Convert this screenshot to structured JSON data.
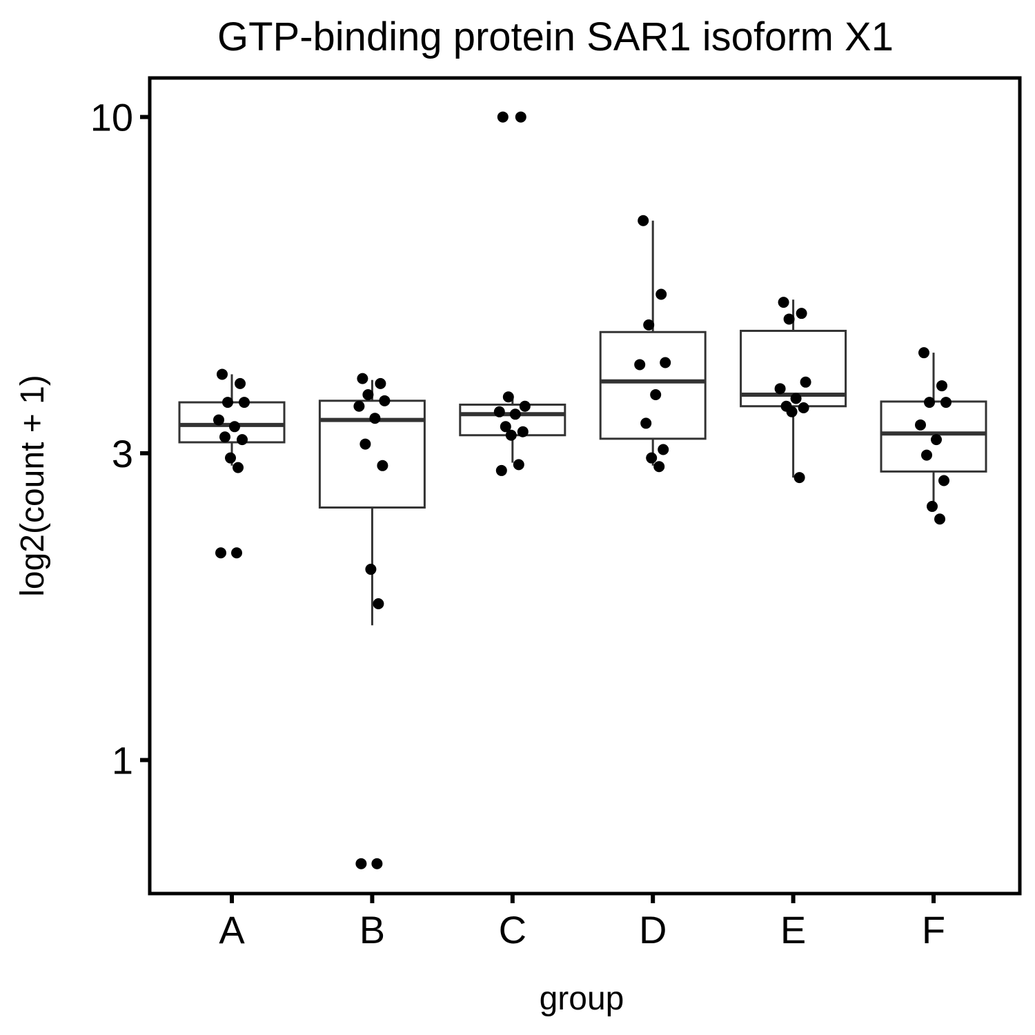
{
  "chart_data": {
    "type": "box",
    "title": "GTP-binding protein SAR1 isoform X1",
    "xlabel": "group",
    "ylabel": "log2(count + 1)",
    "y_scale": "log10",
    "ylim": [
      0.62,
      11.5
    ],
    "y_ticks": [
      1,
      3,
      10
    ],
    "y_tick_labels": [
      "1",
      "3",
      "10"
    ],
    "categories": [
      "A",
      "B",
      "C",
      "D",
      "E",
      "F"
    ],
    "grid": false,
    "legend": "none",
    "boxes": [
      {
        "group": "A",
        "whisker_low": 2.87,
        "q1": 3.12,
        "median": 3.32,
        "q3": 3.6,
        "whisker_high": 3.98
      },
      {
        "group": "B",
        "whisker_low": 1.62,
        "q1": 2.47,
        "median": 3.38,
        "q3": 3.62,
        "whisker_high": 3.9
      },
      {
        "group": "C",
        "whisker_low": 2.9,
        "q1": 3.2,
        "median": 3.45,
        "q3": 3.57,
        "whisker_high": 3.68
      },
      {
        "group": "D",
        "whisker_low": 2.87,
        "q1": 3.16,
        "median": 3.88,
        "q3": 4.63,
        "whisker_high": 6.9
      },
      {
        "group": "E",
        "whisker_low": 2.75,
        "q1": 3.55,
        "median": 3.7,
        "q3": 4.65,
        "whisker_high": 5.2
      },
      {
        "group": "F",
        "whisker_low": 2.5,
        "q1": 2.81,
        "median": 3.22,
        "q3": 3.61,
        "whisker_high": 4.3
      }
    ],
    "points": [
      {
        "group": "A",
        "values": [
          3.98,
          3.85,
          3.6,
          3.6,
          3.38,
          3.3,
          3.18,
          3.15,
          2.95,
          2.85,
          2.1,
          2.1
        ]
      },
      {
        "group": "B",
        "values": [
          3.92,
          3.85,
          3.7,
          3.62,
          3.55,
          3.4,
          3.1,
          2.87,
          1.98,
          1.75,
          0.69,
          0.69
        ]
      },
      {
        "group": "C",
        "values": [
          10.0,
          10.0,
          3.67,
          3.55,
          3.48,
          3.45,
          3.3,
          3.24,
          3.2,
          2.88,
          2.82
        ]
      },
      {
        "group": "D",
        "values": [
          6.9,
          5.3,
          4.75,
          4.15,
          4.12,
          3.7,
          3.34,
          3.04,
          2.95,
          2.86
        ]
      },
      {
        "group": "E",
        "values": [
          5.15,
          4.95,
          4.85,
          3.87,
          3.78,
          3.65,
          3.55,
          3.53,
          3.48,
          2.75
        ]
      },
      {
        "group": "F",
        "values": [
          4.3,
          3.82,
          3.6,
          3.6,
          3.32,
          3.15,
          2.98,
          2.72,
          2.48,
          2.37
        ]
      }
    ]
  }
}
